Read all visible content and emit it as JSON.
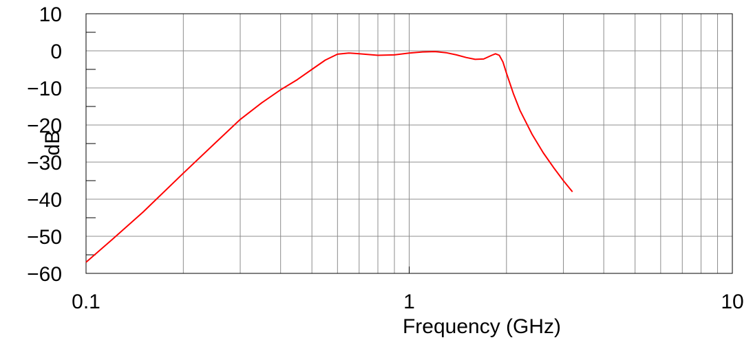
{
  "chart_data": {
    "type": "line",
    "title": "",
    "xlabel": "Frequency (GHz)",
    "ylabel": "dB",
    "x_scale": "log",
    "xlim": [
      0.1,
      10
    ],
    "ylim": [
      -60,
      10
    ],
    "grid": true,
    "x_tick_labels": [
      "0.1",
      "1",
      "10"
    ],
    "y_tick_labels": [
      "10",
      "0",
      "−10",
      "−20",
      "−30",
      "−40",
      "−50",
      "−60"
    ],
    "y_ticks": [
      10,
      0,
      -10,
      -20,
      -30,
      -40,
      -50,
      -60
    ],
    "series": [
      {
        "color": "#ff0000",
        "x": [
          0.1,
          0.12,
          0.15,
          0.2,
          0.25,
          0.3,
          0.35,
          0.4,
          0.45,
          0.5,
          0.55,
          0.6,
          0.65,
          0.7,
          0.8,
          0.9,
          1.0,
          1.1,
          1.2,
          1.3,
          1.4,
          1.5,
          1.6,
          1.7,
          1.8,
          1.85,
          1.9,
          1.95,
          2.0,
          2.1,
          2.2,
          2.4,
          2.6,
          2.8,
          3.0,
          3.2
        ],
        "y": [
          -57,
          -51,
          -43.5,
          -33,
          -25,
          -18.5,
          -14,
          -10.5,
          -7.8,
          -5,
          -2.5,
          -0.9,
          -0.6,
          -0.8,
          -1.2,
          -1.1,
          -0.6,
          -0.3,
          -0.2,
          -0.5,
          -1.1,
          -1.8,
          -2.3,
          -2.2,
          -1.2,
          -0.8,
          -1.2,
          -3,
          -6,
          -11.5,
          -16,
          -22.5,
          -27.5,
          -31.5,
          -35,
          -38
        ]
      }
    ]
  }
}
